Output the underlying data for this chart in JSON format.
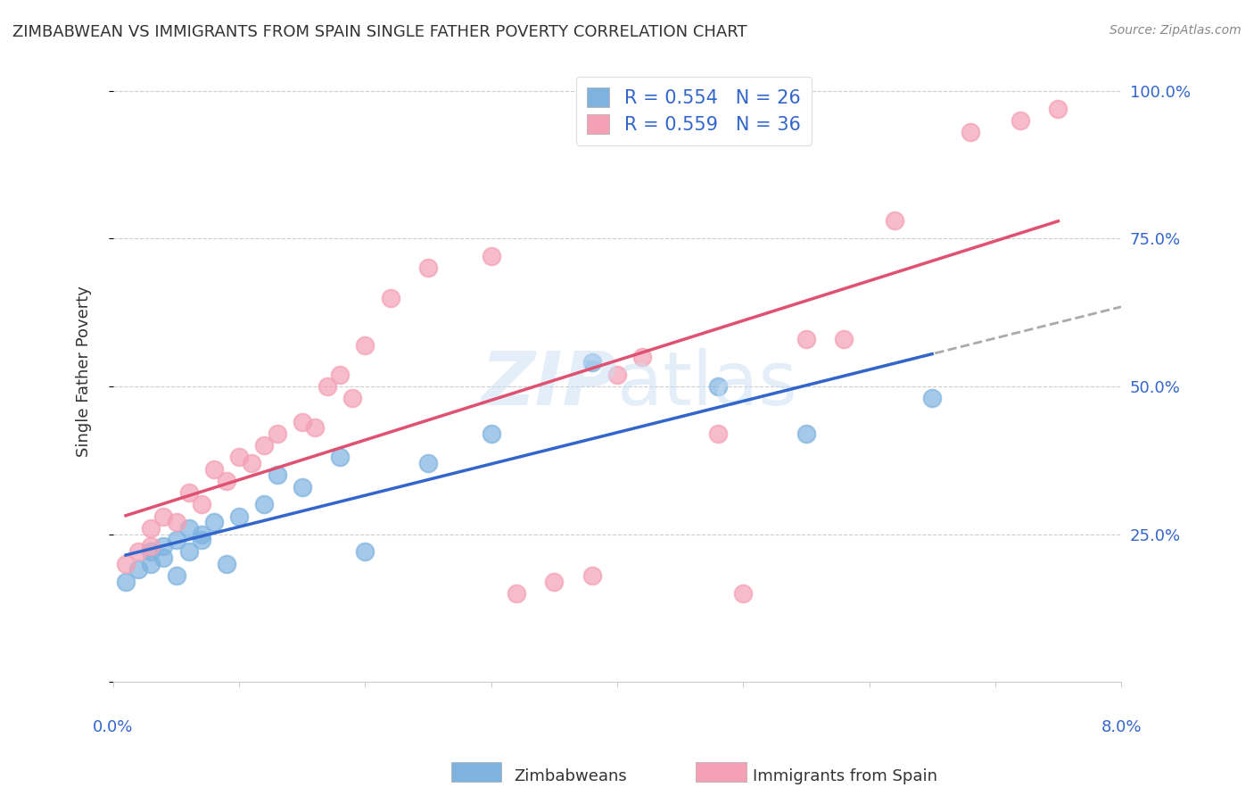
{
  "title": "ZIMBABWEAN VS IMMIGRANTS FROM SPAIN SINGLE FATHER POVERTY CORRELATION CHART",
  "source": "Source: ZipAtlas.com",
  "ylabel": "Single Father Poverty",
  "legend_label1": "Zimbabweans",
  "legend_label2": "Immigrants from Spain",
  "legend_R1": "R = 0.554",
  "legend_N1": "N = 26",
  "legend_R2": "R = 0.559",
  "legend_N2": "N = 36",
  "blue_color": "#7eb3e0",
  "pink_color": "#f4a0b5",
  "blue_line_color": "#3366cc",
  "pink_line_color": "#e05070",
  "dashed_line_color": "#aaaaaa",
  "background_color": "#ffffff",
  "blue_scatter_x": [
    0.001,
    0.002,
    0.003,
    0.003,
    0.004,
    0.004,
    0.005,
    0.005,
    0.006,
    0.006,
    0.007,
    0.007,
    0.008,
    0.009,
    0.01,
    0.012,
    0.013,
    0.015,
    0.018,
    0.02,
    0.025,
    0.03,
    0.038,
    0.048,
    0.055,
    0.065
  ],
  "blue_scatter_y": [
    0.17,
    0.19,
    0.2,
    0.22,
    0.21,
    0.23,
    0.18,
    0.24,
    0.22,
    0.26,
    0.25,
    0.24,
    0.27,
    0.2,
    0.28,
    0.3,
    0.35,
    0.33,
    0.38,
    0.22,
    0.37,
    0.42,
    0.54,
    0.5,
    0.42,
    0.48
  ],
  "pink_scatter_x": [
    0.001,
    0.002,
    0.003,
    0.003,
    0.004,
    0.005,
    0.006,
    0.007,
    0.008,
    0.009,
    0.01,
    0.011,
    0.012,
    0.013,
    0.015,
    0.016,
    0.017,
    0.018,
    0.019,
    0.02,
    0.022,
    0.025,
    0.03,
    0.032,
    0.035,
    0.038,
    0.04,
    0.042,
    0.048,
    0.05,
    0.055,
    0.058,
    0.062,
    0.068,
    0.072,
    0.075
  ],
  "pink_scatter_y": [
    0.2,
    0.22,
    0.23,
    0.26,
    0.28,
    0.27,
    0.32,
    0.3,
    0.36,
    0.34,
    0.38,
    0.37,
    0.4,
    0.42,
    0.44,
    0.43,
    0.5,
    0.52,
    0.48,
    0.57,
    0.65,
    0.7,
    0.72,
    0.15,
    0.17,
    0.18,
    0.52,
    0.55,
    0.42,
    0.15,
    0.58,
    0.58,
    0.78,
    0.93,
    0.95,
    0.97
  ],
  "xlim": [
    0.0,
    0.08
  ],
  "ylim": [
    0.0,
    1.05
  ]
}
